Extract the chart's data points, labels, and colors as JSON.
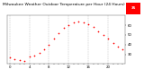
{
  "title": "Milwaukee Weather Outdoor Temperature per Hour (24 Hours)",
  "hours": [
    0,
    1,
    2,
    3,
    4,
    5,
    6,
    7,
    8,
    9,
    10,
    11,
    12,
    13,
    14,
    15,
    16,
    17,
    18,
    19,
    20,
    21,
    22,
    23
  ],
  "temps": [
    27,
    25,
    24,
    23,
    28,
    29,
    31,
    35,
    40,
    46,
    52,
    57,
    60,
    63,
    64,
    63,
    61,
    58,
    54,
    50,
    46,
    42,
    38,
    35
  ],
  "dot_color": "#ff0000",
  "bg_color": "#ffffff",
  "grid_color": "#999999",
  "ylim": [
    20,
    70
  ],
  "yticks": [
    30,
    40,
    50,
    60
  ],
  "title_fontsize": 3.2,
  "tick_fontsize": 2.8,
  "dot_size": 1.5,
  "highlight_color": "#ff0000",
  "highlight_label": "35"
}
